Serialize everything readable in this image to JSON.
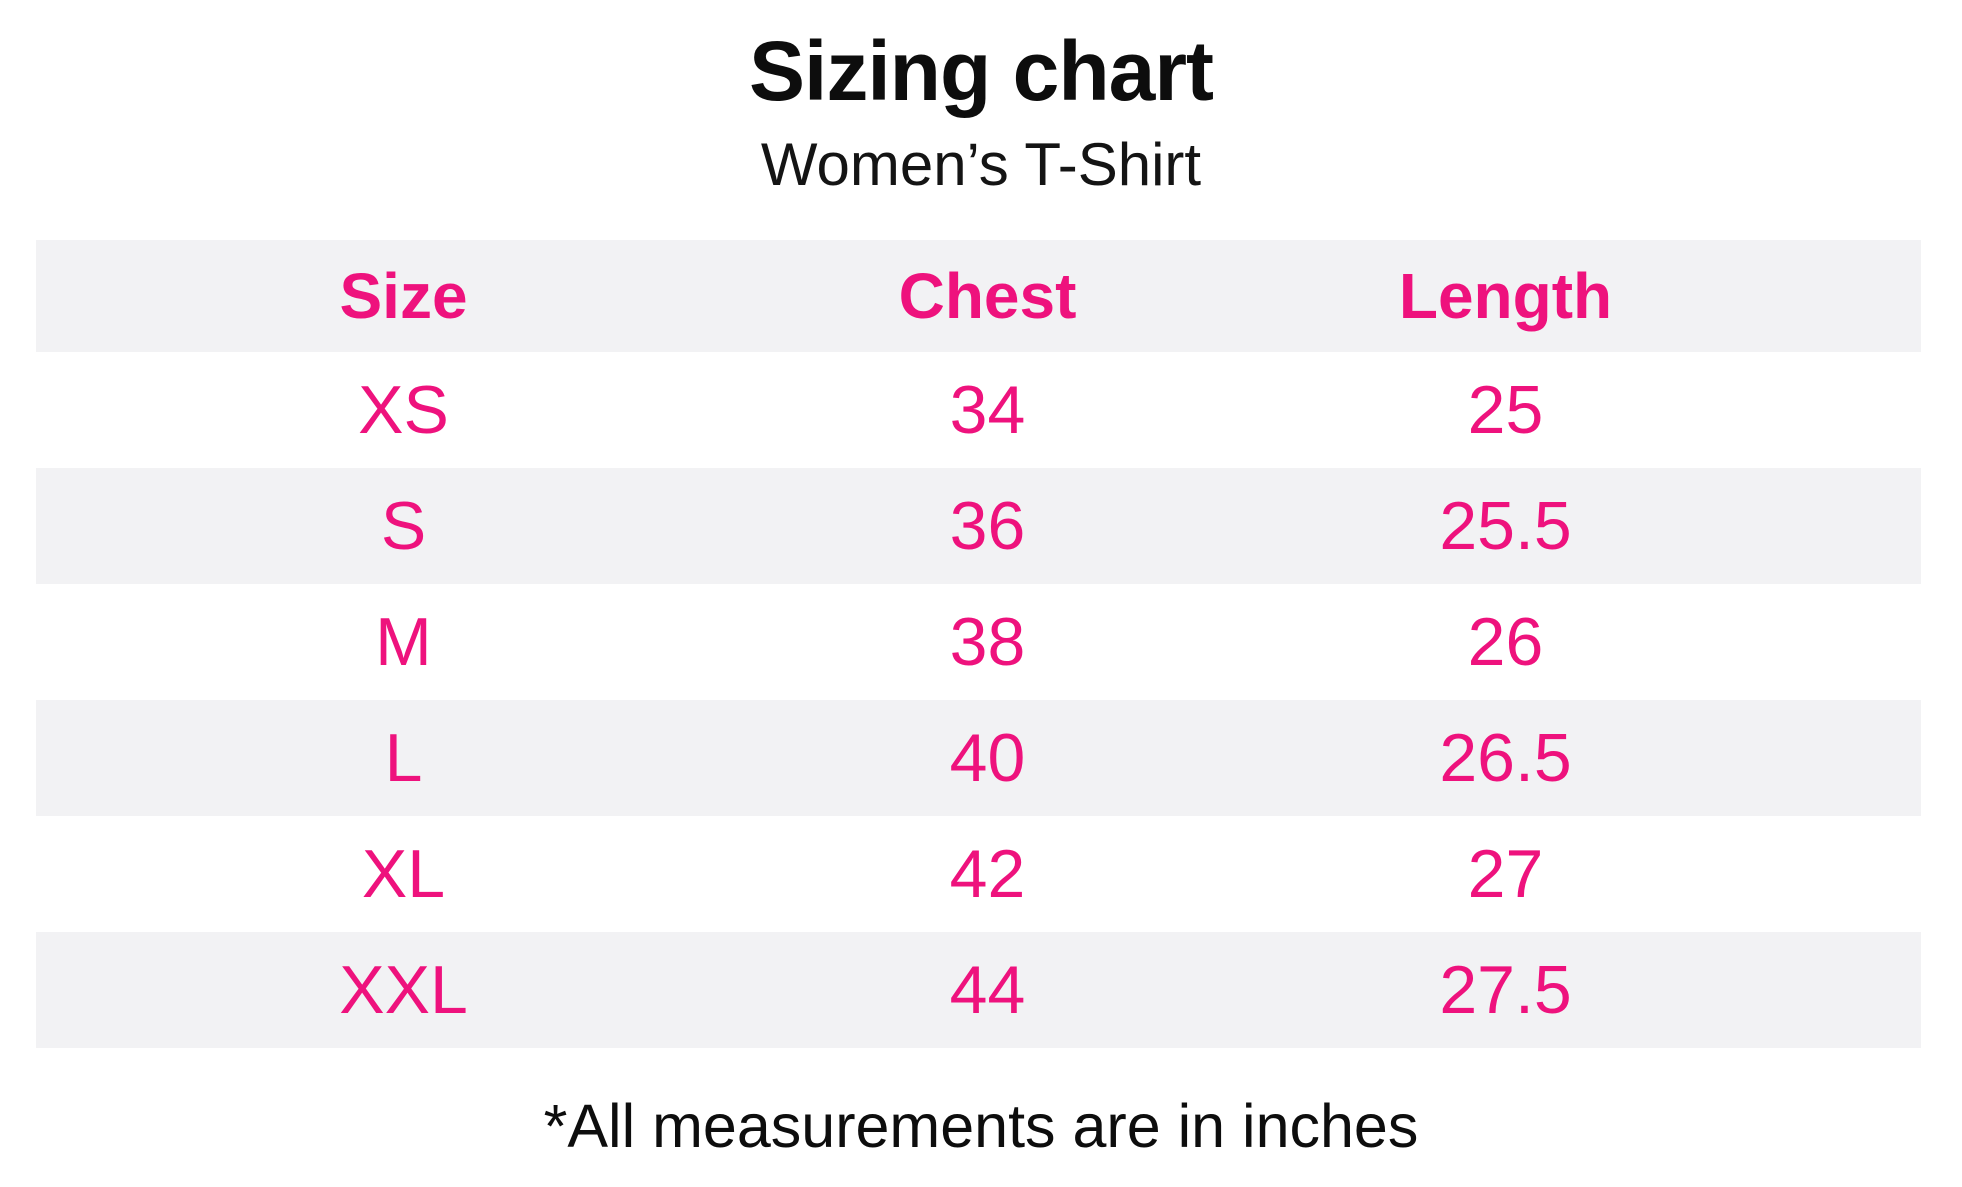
{
  "page": {
    "title": "Sizing chart",
    "subtitle": "Women’s T-Shirt",
    "footnote": "*All measurements are in inches"
  },
  "colors": {
    "accent_pink": "#ee127d",
    "row_alt_bg": "#f2f2f4",
    "text_black": "#0d0d0d"
  },
  "chart_data": {
    "type": "table",
    "title": "Sizing chart",
    "subtitle": "Women’s T-Shirt",
    "columns": [
      "Size",
      "Chest",
      "Length"
    ],
    "rows": [
      [
        "XS",
        "34",
        "25"
      ],
      [
        "S",
        "36",
        "25.5"
      ],
      [
        "M",
        "38",
        "26"
      ],
      [
        "L",
        "40",
        "26.5"
      ],
      [
        "XL",
        "42",
        "27"
      ],
      [
        "XXL",
        "44",
        "27.5"
      ]
    ],
    "units_note": "*All measurements are in inches",
    "layout": {
      "header_bg": "#f2f2f4",
      "alternating_rows": true,
      "first_data_row_bg": "#ffffff",
      "grid_lines": false
    }
  }
}
